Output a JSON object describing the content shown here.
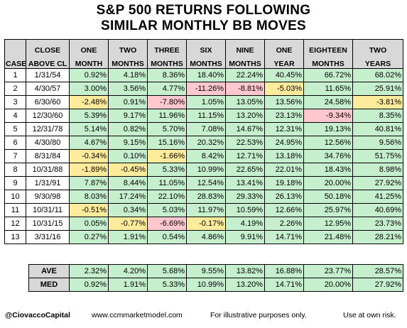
{
  "title": {
    "line1": "S&P 500 RETURNS FOLLOWING",
    "line2": "SIMILAR MONTHLY BB MOVES"
  },
  "colors": {
    "positive": "#c6efce",
    "negative": "#ffc7ce",
    "mild_negative": "#ffeb9c",
    "header": "#d8d8d8"
  },
  "headers": [
    {
      "top": "",
      "bottom": "CASE"
    },
    {
      "top": "CLOSE",
      "bottom": "ABOVE CL"
    },
    {
      "top": "ONE",
      "bottom": "MONTH"
    },
    {
      "top": "TWO",
      "bottom": "MONTHS"
    },
    {
      "top": "THREE",
      "bottom": "MONTHS"
    },
    {
      "top": "SIX",
      "bottom": "MONTHS"
    },
    {
      "top": "NINE",
      "bottom": "MONTHS"
    },
    {
      "top": "ONE",
      "bottom": "YEAR"
    },
    {
      "top": "EIGHTEEN",
      "bottom": "MONTHS"
    },
    {
      "top": "TWO",
      "bottom": "YEARS"
    }
  ],
  "rows": [
    {
      "case": "1",
      "date": "1/31/54",
      "values": [
        {
          "v": "0.92%",
          "c": "pos"
        },
        {
          "v": "4.18%",
          "c": "pos"
        },
        {
          "v": "8.36%",
          "c": "pos"
        },
        {
          "v": "18.40%",
          "c": "pos"
        },
        {
          "v": "22.24%",
          "c": "pos"
        },
        {
          "v": "40.45%",
          "c": "pos"
        },
        {
          "v": "66.72%",
          "c": "pos"
        },
        {
          "v": "68.02%",
          "c": "pos"
        }
      ]
    },
    {
      "case": "2",
      "date": "4/30/57",
      "values": [
        {
          "v": "3.00%",
          "c": "pos"
        },
        {
          "v": "3.56%",
          "c": "pos"
        },
        {
          "v": "4.77%",
          "c": "pos"
        },
        {
          "v": "-11.26%",
          "c": "neg"
        },
        {
          "v": "-8.81%",
          "c": "neg"
        },
        {
          "v": "-5.03%",
          "c": "mild"
        },
        {
          "v": "11.65%",
          "c": "pos"
        },
        {
          "v": "25.91%",
          "c": "pos"
        }
      ]
    },
    {
      "case": "3",
      "date": "6/30/60",
      "values": [
        {
          "v": "-2.48%",
          "c": "mild"
        },
        {
          "v": "0.91%",
          "c": "pos"
        },
        {
          "v": "-7.80%",
          "c": "neg"
        },
        {
          "v": "1.05%",
          "c": "pos"
        },
        {
          "v": "13.05%",
          "c": "pos"
        },
        {
          "v": "13.56%",
          "c": "pos"
        },
        {
          "v": "24.58%",
          "c": "pos"
        },
        {
          "v": "-3.81%",
          "c": "mild"
        }
      ]
    },
    {
      "case": "4",
      "date": "12/30/60",
      "values": [
        {
          "v": "5.39%",
          "c": "pos"
        },
        {
          "v": "9.17%",
          "c": "pos"
        },
        {
          "v": "11.96%",
          "c": "pos"
        },
        {
          "v": "11.15%",
          "c": "pos"
        },
        {
          "v": "13.20%",
          "c": "pos"
        },
        {
          "v": "23.13%",
          "c": "pos"
        },
        {
          "v": "-9.34%",
          "c": "neg"
        },
        {
          "v": "8.35%",
          "c": "pos"
        }
      ]
    },
    {
      "case": "5",
      "date": "12/31/78",
      "values": [
        {
          "v": "5.14%",
          "c": "pos"
        },
        {
          "v": "0.82%",
          "c": "pos"
        },
        {
          "v": "5.70%",
          "c": "pos"
        },
        {
          "v": "7.08%",
          "c": "pos"
        },
        {
          "v": "14.67%",
          "c": "pos"
        },
        {
          "v": "12.31%",
          "c": "pos"
        },
        {
          "v": "19.13%",
          "c": "pos"
        },
        {
          "v": "40.81%",
          "c": "pos"
        }
      ]
    },
    {
      "case": "6",
      "date": "4/30/80",
      "values": [
        {
          "v": "4.67%",
          "c": "pos"
        },
        {
          "v": "9.15%",
          "c": "pos"
        },
        {
          "v": "15.16%",
          "c": "pos"
        },
        {
          "v": "20.32%",
          "c": "pos"
        },
        {
          "v": "22.53%",
          "c": "pos"
        },
        {
          "v": "24.95%",
          "c": "pos"
        },
        {
          "v": "12.56%",
          "c": "pos"
        },
        {
          "v": "9.56%",
          "c": "pos"
        }
      ]
    },
    {
      "case": "7",
      "date": "8/31/84",
      "values": [
        {
          "v": "-0.34%",
          "c": "mild"
        },
        {
          "v": "0.10%",
          "c": "pos"
        },
        {
          "v": "-1.66%",
          "c": "mild"
        },
        {
          "v": "8.42%",
          "c": "pos"
        },
        {
          "v": "12.71%",
          "c": "pos"
        },
        {
          "v": "13.18%",
          "c": "pos"
        },
        {
          "v": "34.76%",
          "c": "pos"
        },
        {
          "v": "51.75%",
          "c": "pos"
        }
      ]
    },
    {
      "case": "8",
      "date": "10/31/88",
      "values": [
        {
          "v": "-1.89%",
          "c": "mild"
        },
        {
          "v": "-0.45%",
          "c": "mild"
        },
        {
          "v": "5.33%",
          "c": "pos"
        },
        {
          "v": "10.99%",
          "c": "pos"
        },
        {
          "v": "22.65%",
          "c": "pos"
        },
        {
          "v": "22.01%",
          "c": "pos"
        },
        {
          "v": "18.43%",
          "c": "pos"
        },
        {
          "v": "8.98%",
          "c": "pos"
        }
      ]
    },
    {
      "case": "9",
      "date": "1/31/91",
      "values": [
        {
          "v": "7.87%",
          "c": "pos"
        },
        {
          "v": "8.44%",
          "c": "pos"
        },
        {
          "v": "11.05%",
          "c": "pos"
        },
        {
          "v": "12.54%",
          "c": "pos"
        },
        {
          "v": "13.41%",
          "c": "pos"
        },
        {
          "v": "19.18%",
          "c": "pos"
        },
        {
          "v": "20.00%",
          "c": "pos"
        },
        {
          "v": "27.92%",
          "c": "pos"
        }
      ]
    },
    {
      "case": "10",
      "date": "9/30/98",
      "values": [
        {
          "v": "8.03%",
          "c": "pos"
        },
        {
          "v": "17.24%",
          "c": "pos"
        },
        {
          "v": "22.10%",
          "c": "pos"
        },
        {
          "v": "28.83%",
          "c": "pos"
        },
        {
          "v": "29.33%",
          "c": "pos"
        },
        {
          "v": "26.13%",
          "c": "pos"
        },
        {
          "v": "50.18%",
          "c": "pos"
        },
        {
          "v": "41.25%",
          "c": "pos"
        }
      ]
    },
    {
      "case": "11",
      "date": "10/31/11",
      "values": [
        {
          "v": "-0.51%",
          "c": "mild"
        },
        {
          "v": "0.34%",
          "c": "pos"
        },
        {
          "v": "5.03%",
          "c": "pos"
        },
        {
          "v": "11.97%",
          "c": "pos"
        },
        {
          "v": "10.59%",
          "c": "pos"
        },
        {
          "v": "12.66%",
          "c": "pos"
        },
        {
          "v": "25.97%",
          "c": "pos"
        },
        {
          "v": "40.69%",
          "c": "pos"
        }
      ]
    },
    {
      "case": "12",
      "date": "10/31/15",
      "values": [
        {
          "v": "0.05%",
          "c": "pos"
        },
        {
          "v": "-0.77%",
          "c": "mild"
        },
        {
          "v": "-6.69%",
          "c": "neg"
        },
        {
          "v": "-0.17%",
          "c": "mild"
        },
        {
          "v": "4.19%",
          "c": "pos"
        },
        {
          "v": "2.26%",
          "c": "pos"
        },
        {
          "v": "12.95%",
          "c": "pos"
        },
        {
          "v": "23.73%",
          "c": "pos"
        }
      ]
    },
    {
      "case": "13",
      "date": "3/31/16",
      "values": [
        {
          "v": "0.27%",
          "c": "pos"
        },
        {
          "v": "1.91%",
          "c": "pos"
        },
        {
          "v": "0.54%",
          "c": "pos"
        },
        {
          "v": "4.86%",
          "c": "pos"
        },
        {
          "v": "9.91%",
          "c": "pos"
        },
        {
          "v": "14.71%",
          "c": "pos"
        },
        {
          "v": "21.48%",
          "c": "pos"
        },
        {
          "v": "28.21%",
          "c": "pos"
        }
      ]
    }
  ],
  "summary": [
    {
      "label": "AVE",
      "values": [
        "2.32%",
        "4.20%",
        "5.68%",
        "9.55%",
        "13.82%",
        "16.88%",
        "23.77%",
        "28.57%"
      ]
    },
    {
      "label": "MED",
      "values": [
        "0.92%",
        "1.91%",
        "5.33%",
        "10.99%",
        "13.20%",
        "14.71%",
        "20.00%",
        "27.92%"
      ]
    }
  ],
  "footer": {
    "handle": "@CiovaccoCapital",
    "url": "www.ccmmarketmodel.com",
    "note": "For illustrative purposes only.",
    "risk": "Use at own risk."
  }
}
